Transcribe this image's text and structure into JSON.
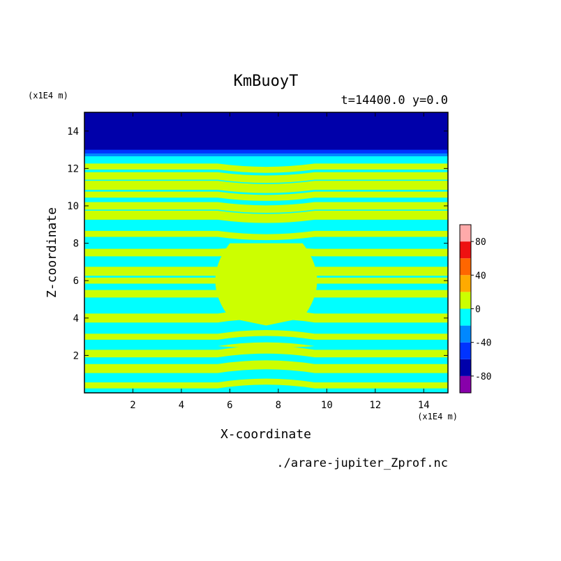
{
  "chart_data": {
    "type": "heatmap",
    "title": "KmBuoyT",
    "subtitle": "t=14400.0 y=0.0",
    "xlabel": "X-coordinate",
    "ylabel": "Z-coordinate",
    "x_unit": "(x1E4 m)",
    "z_unit": "(x1E4 m)",
    "xlim": [
      0,
      15
    ],
    "ylim": [
      0,
      15
    ],
    "x_ticks": [
      "2",
      "4",
      "6",
      "8",
      "10",
      "12",
      "14"
    ],
    "y_ticks": [
      "2",
      "4",
      "6",
      "8",
      "10",
      "12",
      "14"
    ],
    "source_file": "./arare-jupiter_Zprof.nc",
    "colorbar": {
      "range": [
        -100,
        100
      ],
      "step": 20,
      "labels": [
        "80",
        "40",
        "0",
        "-40",
        "-80"
      ],
      "colors": [
        "#8800aa",
        "#0000aa",
        "#0033ff",
        "#0088ff",
        "#00ffff",
        "#ccff00",
        "#ffaa00",
        "#ff6600",
        "#ee1111",
        "#ffaaaa"
      ]
    },
    "fields": {
      "upper_layer": {
        "z_from": 13.0,
        "z_to": 15.0,
        "value": "below -80"
      },
      "positive_bands_z": [
        12.1,
        11.6,
        11.1,
        10.6,
        10.0,
        9.5,
        8.5,
        7.5,
        6.5,
        6.0,
        5.3,
        4.0,
        3.0,
        2.1,
        1.3,
        0.4
      ],
      "central_positive_region": {
        "x_from": 6.0,
        "x_to": 9.0,
        "z_from": 4.0,
        "z_to": 8.0
      }
    }
  }
}
